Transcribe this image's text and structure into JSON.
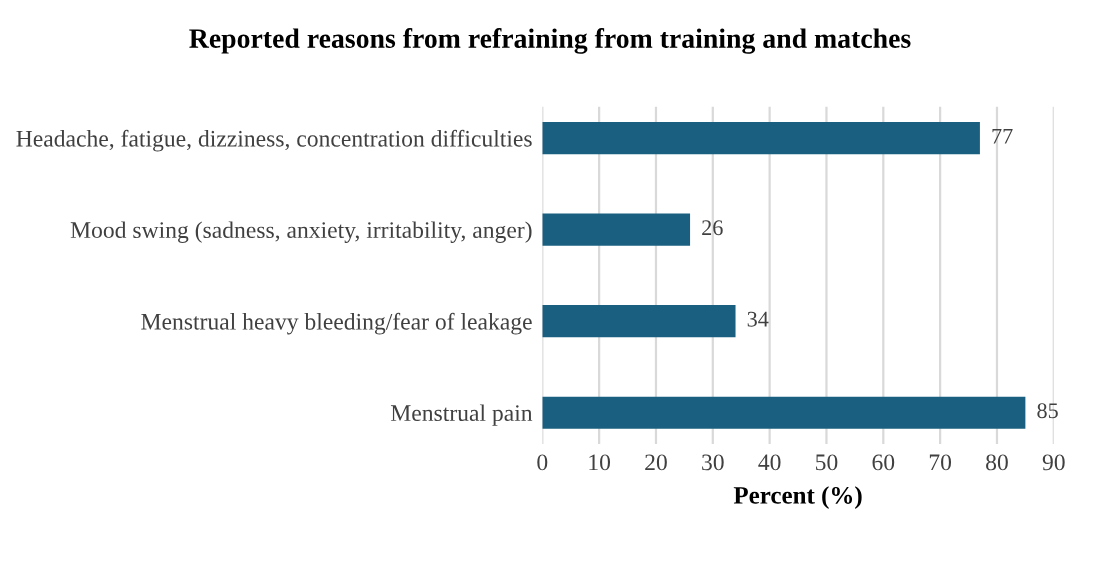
{
  "chart_data": {
    "type": "bar",
    "orientation": "horizontal",
    "title": "Reported reasons from refraining from training and matches",
    "xlabel": "Percent (%)",
    "categories": [
      "Headache, fatigue, dizziness, concentration difficulties",
      "Mood swing (sadness, anxiety, irritability, anger)",
      "Menstrual heavy bleeding/fear of leakage",
      "Menstrual pain"
    ],
    "values": [
      77,
      26,
      34,
      85
    ],
    "color": "#1b5f80",
    "data_labels": true,
    "xlim": [
      0,
      90
    ],
    "xticks": [
      0,
      10,
      20,
      30,
      40,
      50,
      60,
      70,
      80,
      90
    ],
    "grid": "x",
    "legend": false
  }
}
